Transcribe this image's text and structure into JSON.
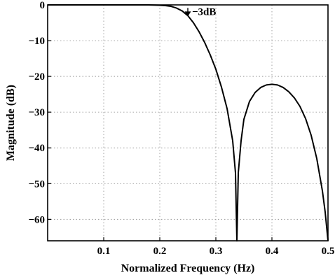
{
  "chart_data": {
    "type": "line",
    "title": "",
    "xlabel": "Normalized Frequency (Hz)",
    "ylabel": "Magnitude (dB)",
    "xlim": [
      0,
      0.5
    ],
    "ylim": [
      -66,
      0
    ],
    "x_ticks": [
      0.1,
      0.2,
      0.3,
      0.4,
      0.5
    ],
    "x_tick_labels": [
      "0.1",
      "0.2",
      "0.3",
      "0.4",
      "0.5"
    ],
    "y_ticks": [
      0,
      -10,
      -20,
      -30,
      -40,
      -50,
      -60
    ],
    "y_tick_labels": [
      "0",
      "−10",
      "−20",
      "−30",
      "−40",
      "−50",
      "−60"
    ],
    "grid": true,
    "series": [
      {
        "x": [
          0,
          0.05,
          0.1,
          0.15,
          0.18,
          0.2,
          0.21,
          0.22,
          0.23,
          0.24,
          0.25,
          0.26,
          0.27,
          0.28,
          0.29,
          0.3,
          0.31,
          0.32,
          0.33,
          0.335,
          0.3375,
          0.34,
          0.345,
          0.35,
          0.36,
          0.37,
          0.38,
          0.39,
          0.4,
          0.41,
          0.42,
          0.43,
          0.44,
          0.45,
          0.46,
          0.47,
          0.48,
          0.49,
          0.495,
          0.5
        ],
        "y": [
          0,
          0,
          0,
          0,
          0,
          -0.1,
          -0.2,
          -0.4,
          -0.9,
          -1.7,
          -3,
          -5,
          -7.5,
          -10.5,
          -14,
          -18,
          -23,
          -29,
          -38,
          -47,
          -66,
          -47,
          -38,
          -32,
          -27,
          -24.5,
          -23.1,
          -22.4,
          -22.2,
          -22.4,
          -23.1,
          -24.3,
          -26,
          -28.4,
          -31.8,
          -36.5,
          -43,
          -52,
          -58,
          -66
        ]
      }
    ],
    "annotations": [
      {
        "text": "−3dB",
        "x": 0.25,
        "y": -3
      }
    ]
  }
}
